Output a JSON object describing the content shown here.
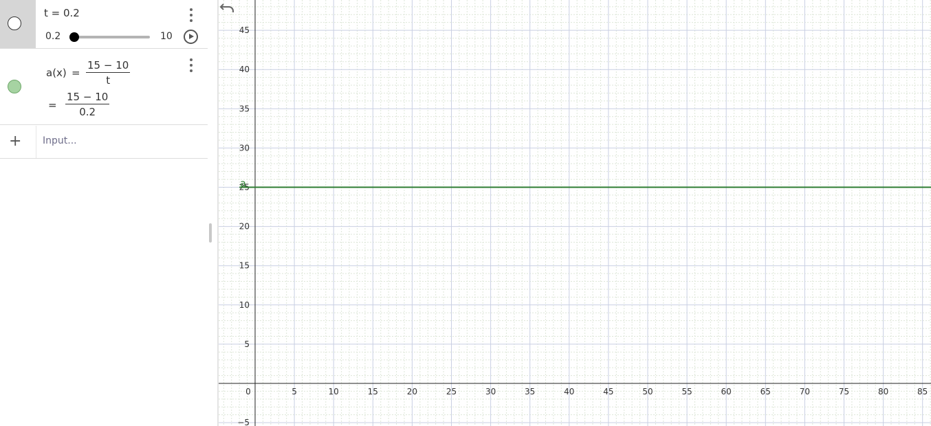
{
  "algebra": {
    "slider": {
      "definition": "t = 0.2",
      "min": "0.2",
      "max": "10",
      "value": 0.2,
      "range": [
        0.2,
        10
      ]
    },
    "function": {
      "lhs": "a(x)",
      "eq": "=",
      "numerator": "15 − 10",
      "denominator": "t",
      "value_eq": "=",
      "value_numerator": "15 − 10",
      "value_denominator": "0.2",
      "color": "#2e7d32"
    },
    "input": {
      "placeholder": "Input..."
    }
  },
  "chart_data": {
    "type": "line",
    "x_ticks": [
      "0",
      "5",
      "10",
      "15",
      "20",
      "25",
      "30",
      "35",
      "40",
      "45",
      "50",
      "55",
      "60",
      "65",
      "70",
      "75",
      "80",
      "85"
    ],
    "y_ticks": [
      "−5",
      "5",
      "10",
      "15",
      "20",
      "25",
      "30",
      "35",
      "40",
      "45"
    ],
    "series": [
      {
        "name": "a",
        "x": [
          -2,
          87
        ],
        "y": [
          25,
          25
        ],
        "color": "#2e7d32"
      }
    ],
    "xlim": [
      -2.3,
      88
    ],
    "ylim": [
      -5.4,
      48.8
    ],
    "grid": true
  }
}
